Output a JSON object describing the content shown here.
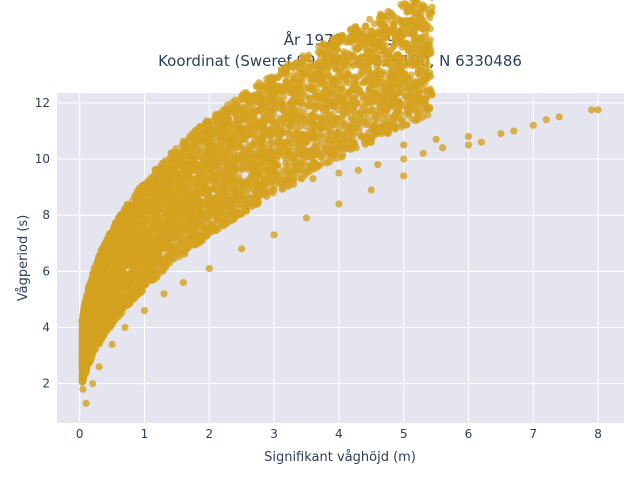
{
  "chart_data": {
    "type": "scatter",
    "title_line1": "År 1979 - 2019",
    "title_line2": "Koordinat (Sweref 99 TM): E 829190, N 6330486",
    "xlabel": "Signifikant våghöjd (m)",
    "ylabel": "Vågperiod (s)",
    "xlim": [
      -0.35,
      8.4
    ],
    "ylim": [
      0.6,
      12.35
    ],
    "x_ticks": [
      0,
      1,
      2,
      3,
      4,
      5,
      6,
      7,
      8
    ],
    "y_ticks": [
      2,
      4,
      6,
      8,
      10,
      12
    ],
    "marker_color": "#D4A21F",
    "background_color": "#E5E5F0",
    "grid": true,
    "series": [
      {
        "x": [
          0.05,
          0.1,
          0.15,
          0.2,
          0.3,
          0.4,
          0.5,
          0.6,
          0.8,
          1.0,
          1.2,
          1.5,
          1.8,
          2.0,
          2.3,
          2.6,
          3.0,
          3.3,
          3.6,
          4.0,
          4.3,
          4.6,
          5.0,
          5.3,
          5.6,
          6.0,
          6.2,
          6.5,
          6.7,
          7.0,
          7.2,
          7.4,
          7.9,
          8.0,
          0.1,
          0.2,
          0.3,
          0.5,
          0.7,
          1.0,
          1.3,
          1.6,
          2.0,
          2.5,
          3.0,
          3.5,
          4.0,
          4.5,
          5.0,
          0.15,
          0.25,
          0.4,
          0.6,
          0.9,
          1.2,
          1.5,
          2.0,
          2.5,
          3.0,
          3.5,
          4.0,
          4.5,
          5.0,
          5.5,
          6.0
        ],
        "y": [
          1.8,
          2.4,
          3.0,
          3.5,
          4.2,
          4.8,
          5.2,
          5.7,
          6.2,
          6.6,
          7.0,
          7.4,
          7.8,
          8.1,
          8.4,
          8.6,
          8.9,
          9.1,
          9.3,
          9.5,
          9.6,
          9.8,
          10.0,
          10.2,
          10.4,
          10.5,
          10.6,
          10.9,
          11.0,
          11.2,
          11.4,
          11.5,
          11.75,
          11.75,
          1.3,
          2.0,
          2.6,
          3.4,
          4.0,
          4.6,
          5.2,
          5.6,
          6.1,
          6.8,
          7.3,
          7.9,
          8.4,
          8.9,
          9.4,
          3.8,
          4.9,
          5.6,
          6.3,
          6.9,
          7.4,
          7.8,
          8.6,
          9.2,
          9.7,
          10.1,
          10.5,
          10.6,
          10.5,
          10.7,
          10.8
        ]
      }
    ]
  }
}
